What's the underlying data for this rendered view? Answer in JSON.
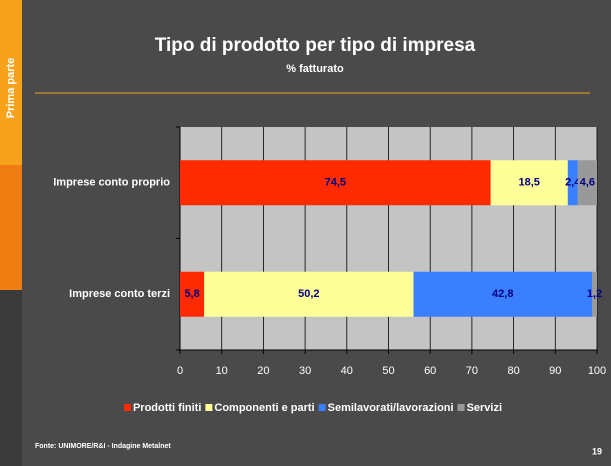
{
  "slide": {
    "section": "Prima parte",
    "source": "Fonte: UNIMORE/R&I - Indagine Metalnet",
    "page": "19"
  },
  "chart_data": {
    "type": "stacked-barh",
    "title": "Tipo di prodotto per tipo di impresa",
    "subtitle": "% fatturato",
    "categories": [
      "Imprese conto proprio",
      "Imprese conto terzi"
    ],
    "series": [
      {
        "name": "Prodotti finiti",
        "color": "#ff2a00",
        "values": [
          74.5,
          5.8
        ],
        "value_labels": [
          "74,5",
          "5,8"
        ]
      },
      {
        "name": "Componenti e parti",
        "color": "#ffff99",
        "values": [
          18.5,
          50.2
        ],
        "value_labels": [
          "18,5",
          "50,2"
        ]
      },
      {
        "name": "Semilavorati/lavorazioni",
        "color": "#3a7fff",
        "values": [
          2.4,
          42.8
        ],
        "value_labels": [
          "2,4",
          "42,8"
        ]
      },
      {
        "name": "Servizi",
        "color": "#999999",
        "values": [
          4.6,
          1.2
        ],
        "value_labels": [
          "4,6",
          "1,2"
        ]
      }
    ],
    "xlim": [
      0,
      100
    ],
    "xticks": [
      0,
      10,
      20,
      30,
      40,
      50,
      60,
      70,
      80,
      90,
      100
    ],
    "grid": true,
    "legend": "bottom"
  }
}
